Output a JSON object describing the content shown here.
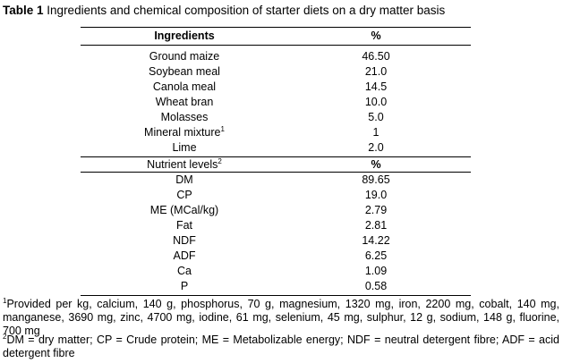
{
  "caption": {
    "label": "Table 1",
    "text": "Ingredients and chemical composition of starter diets on a dry matter basis"
  },
  "header": {
    "col1": "Ingredients",
    "col2": "%"
  },
  "ingredients": [
    {
      "name": "Ground maize",
      "value": "46.50"
    },
    {
      "name": "Soybean meal",
      "value": "21.0"
    },
    {
      "name": "Canola meal",
      "value": "14.5"
    },
    {
      "name": "Wheat bran",
      "value": "10.0"
    },
    {
      "name": "Molasses",
      "value": "5.0"
    },
    {
      "name": "Mineral mixture",
      "sup": "1",
      "value": "1"
    },
    {
      "name": "Lime",
      "value": "2.0"
    }
  ],
  "nutrient_header": {
    "col1": "Nutrient levels",
    "sup": "2",
    "col2": "%"
  },
  "nutrients": [
    {
      "name": "DM",
      "value": "89.65"
    },
    {
      "name": "CP",
      "value": "19.0"
    },
    {
      "name": "ME (MCal/kg)",
      "value": "2.79"
    },
    {
      "name": "Fat",
      "value": "2.81"
    },
    {
      "name": "NDF",
      "value": "14.22"
    },
    {
      "name": "ADF",
      "value": "6.25"
    },
    {
      "name": "Ca",
      "value": "1.09"
    },
    {
      "name": "P",
      "value": "0.58"
    }
  ],
  "footnotes": {
    "fn1_sup": "1",
    "fn1_text": "Provided per kg, calcium, 140 g, phosphorus, 70 g, magnesium, 1320 mg, iron, 2200 mg, cobalt, 140 mg, manganese, 3690 mg, zinc, 4700 mg, iodine, 61 mg, selenium, 45 mg, sulphur, 12 g, sodium, 148 g, fluorine, 700 mg",
    "fn2_sup": "2",
    "fn2_text": "DM = dry matter; CP = Crude protein; ME = Metabolizable energy; NDF = neutral detergent fibre; ADF = acid detergent fibre"
  }
}
